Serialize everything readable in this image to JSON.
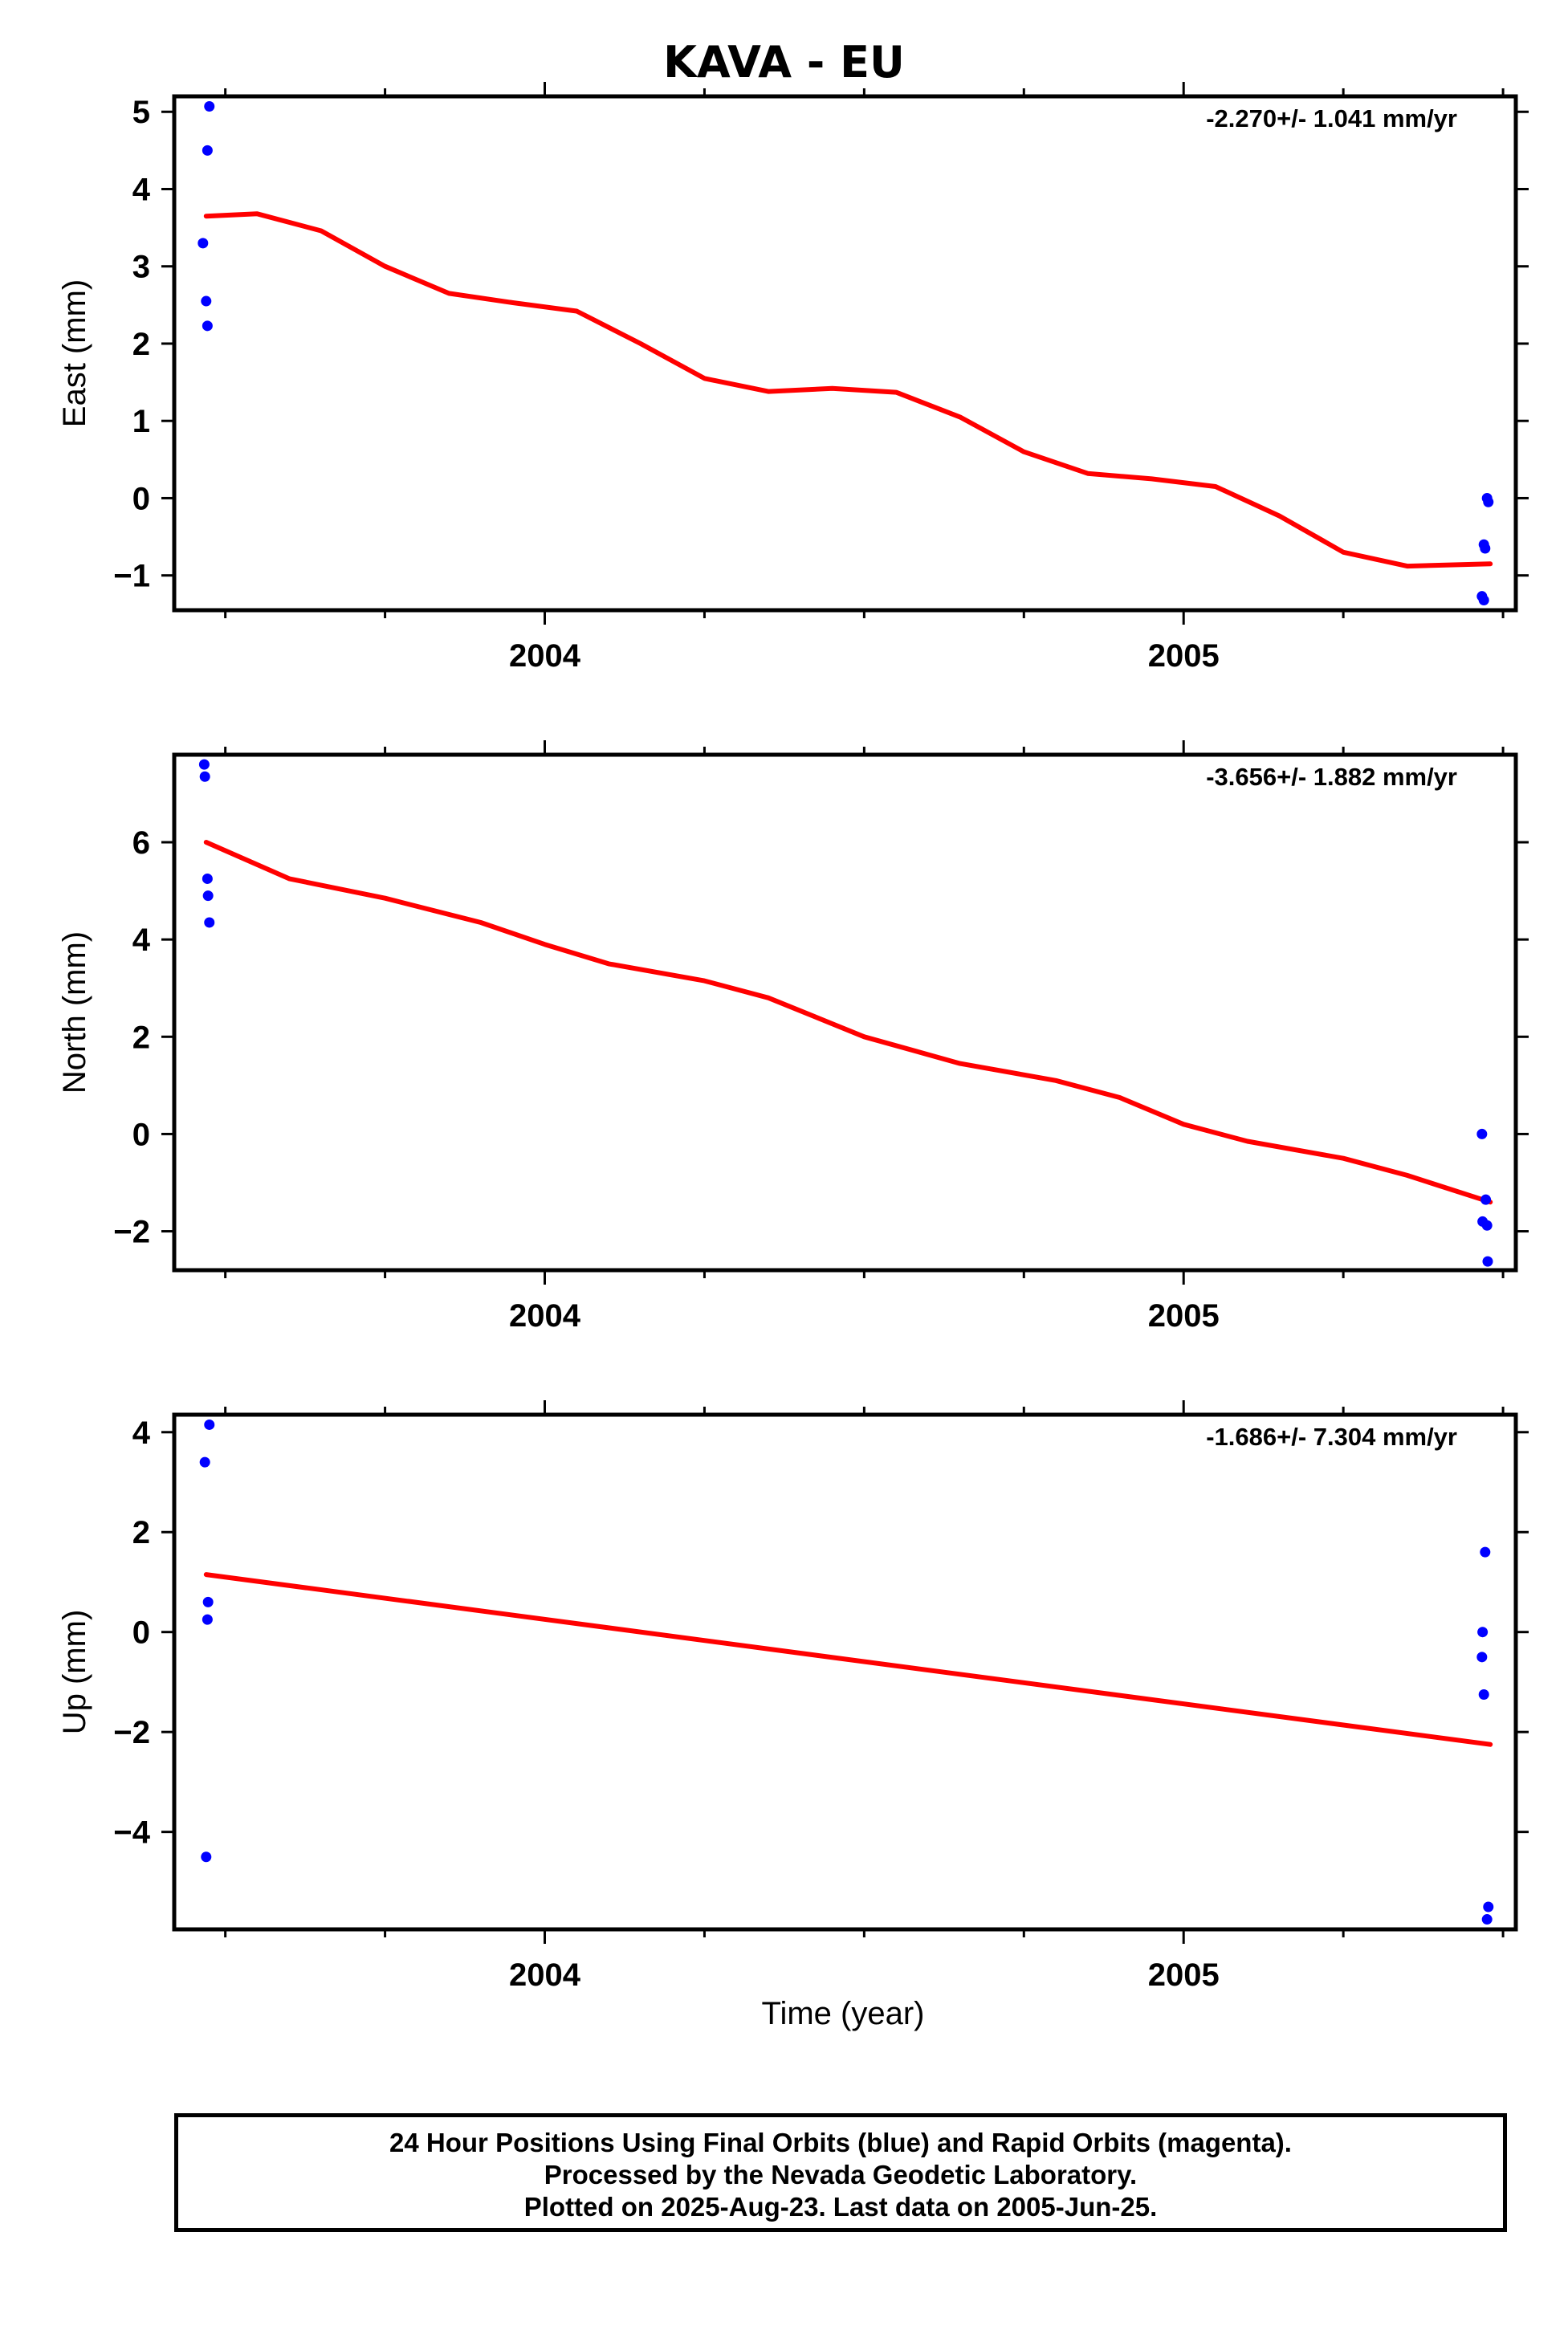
{
  "title": "KAVA - EU",
  "xlabel": "Time (year)",
  "footer": [
    "24 Hour Positions Using Final Orbits (blue) and Rapid Orbits (magenta).",
    "Processed by the Nevada Geodetic Laboratory.",
    "Plotted on 2025-Aug-23. Last data on 2005-Jun-25."
  ],
  "colors": {
    "points": "#0000ff",
    "fit": "#ff0000",
    "axes": "#000000"
  },
  "chart_data": [
    {
      "type": "scatter",
      "ylabel": "East (mm)",
      "rate": "-2.270+/- 1.041 mm/yr",
      "xlim": [
        2003.42,
        2005.52
      ],
      "ylim": [
        -1.45,
        5.2
      ],
      "yticks": [
        -1,
        0,
        1,
        2,
        3,
        4,
        5
      ],
      "xticks": [
        2004,
        2005
      ],
      "points": {
        "x": [
          2003.465,
          2003.47,
          2003.472,
          2003.472,
          2003.475,
          2005.467,
          2005.47,
          2005.47,
          2005.472,
          2005.475,
          2005.477
        ],
        "y": [
          3.3,
          2.55,
          2.23,
          4.5,
          5.07,
          -1.27,
          -1.32,
          -0.6,
          -0.65,
          0.0,
          -0.05
        ]
      },
      "fit": {
        "x": [
          2003.47,
          2003.55,
          2003.65,
          2003.75,
          2003.85,
          2003.95,
          2004.05,
          2004.15,
          2004.25,
          2004.35,
          2004.45,
          2004.55,
          2004.65,
          2004.75,
          2004.85,
          2004.95,
          2005.05,
          2005.15,
          2005.25,
          2005.35,
          2005.48
        ],
        "y": [
          3.65,
          3.68,
          3.46,
          3.0,
          2.65,
          2.53,
          2.42,
          2.0,
          1.55,
          1.38,
          1.42,
          1.37,
          1.05,
          0.6,
          0.32,
          0.25,
          0.15,
          -0.23,
          -0.7,
          -0.88,
          -0.85
        ]
      }
    },
    {
      "type": "scatter",
      "ylabel": "North (mm)",
      "rate": "-3.656+/- 1.882 mm/yr",
      "xlim": [
        2003.42,
        2005.52
      ],
      "ylim": [
        -2.8,
        7.8
      ],
      "yticks": [
        -2,
        0,
        2,
        4,
        6
      ],
      "xticks": [
        2004,
        2005
      ],
      "points": {
        "x": [
          2003.467,
          2003.468,
          2003.472,
          2003.473,
          2003.475,
          2005.467,
          2005.468,
          2005.473,
          2005.475,
          2005.476
        ],
        "y": [
          7.6,
          7.35,
          5.25,
          4.9,
          4.35,
          0.0,
          -1.8,
          -1.35,
          -1.88,
          -2.62
        ]
      },
      "fit": {
        "x": [
          2003.47,
          2003.6,
          2003.75,
          2003.9,
          2004.0,
          2004.1,
          2004.25,
          2004.35,
          2004.5,
          2004.65,
          2004.8,
          2004.9,
          2005.0,
          2005.1,
          2005.25,
          2005.35,
          2005.48
        ],
        "y": [
          6.0,
          5.25,
          4.85,
          4.35,
          3.9,
          3.5,
          3.15,
          2.8,
          2.0,
          1.45,
          1.1,
          0.75,
          0.2,
          -0.15,
          -0.5,
          -0.85,
          -1.4
        ]
      }
    },
    {
      "type": "scatter",
      "ylabel": "Up (mm)",
      "rate": "-1.686+/- 7.304 mm/yr",
      "xlim": [
        2003.42,
        2005.52
      ],
      "ylim": [
        -5.95,
        4.35
      ],
      "yticks": [
        -4,
        -2,
        0,
        2,
        4
      ],
      "xticks": [
        2004,
        2005
      ],
      "points": {
        "x": [
          2003.468,
          2003.47,
          2003.472,
          2003.473,
          2003.475,
          2005.467,
          2005.468,
          2005.47,
          2005.472,
          2005.475,
          2005.477
        ],
        "y": [
          3.4,
          -4.5,
          0.25,
          0.6,
          4.15,
          -0.5,
          0.0,
          -1.25,
          1.6,
          -5.75,
          -5.5
        ]
      },
      "fit": {
        "x": [
          2003.47,
          2005.48
        ],
        "y": [
          1.15,
          -2.25
        ]
      }
    }
  ]
}
